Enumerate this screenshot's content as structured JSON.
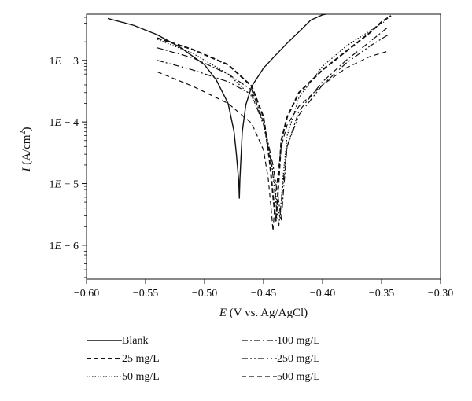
{
  "chart_data": {
    "type": "line",
    "title": "",
    "xlabel": "E (V vs. Ag/AgCl)",
    "ylabel": "I (A/cm²)",
    "xlim": [
      -0.6,
      -0.3
    ],
    "ylim_log10": [
      -6.55,
      -2.25
    ],
    "y_scale": "log",
    "x_ticks": [
      "−0.60",
      "−0.55",
      "−0.50",
      "−0.45",
      "−0.40",
      "−0.35",
      "−0.30"
    ],
    "y_ticks": [
      {
        "value": 0.001,
        "label": "1E − 3"
      },
      {
        "value": 0.0001,
        "label": "1E − 4"
      },
      {
        "value": 1e-05,
        "label": "1E − 5"
      },
      {
        "value": 1e-06,
        "label": "1E − 6"
      }
    ],
    "legend_position": "below",
    "series": [
      {
        "name": "Blank",
        "style": "solid",
        "width": 1.4,
        "x": [
          -0.582,
          -0.56,
          -0.54,
          -0.52,
          -0.5,
          -0.49,
          -0.48,
          -0.475,
          -0.473,
          -0.471,
          -0.4705,
          -0.47,
          -0.468,
          -0.465,
          -0.46,
          -0.45,
          -0.44,
          -0.43,
          -0.42,
          -0.41,
          -0.4,
          -0.39,
          -0.383
        ],
        "y": [
          0.0048,
          0.0037,
          0.0026,
          0.0016,
          0.00085,
          0.00048,
          0.0002,
          7e-05,
          3e-05,
          1.1e-05,
          5.8e-06,
          1.2e-05,
          7e-05,
          0.00019,
          0.00038,
          0.00075,
          0.0012,
          0.0019,
          0.0029,
          0.0045,
          0.0055,
          0.006,
          0.0062
        ]
      },
      {
        "name": "25 mg/L",
        "style": "dash-heavy",
        "width": 2.0,
        "x": [
          -0.54,
          -0.51,
          -0.48,
          -0.46,
          -0.45,
          -0.445,
          -0.441,
          -0.4395,
          -0.438,
          -0.435,
          -0.43,
          -0.42,
          -0.4,
          -0.38,
          -0.36,
          -0.35,
          -0.342
        ],
        "y": [
          0.0023,
          0.0015,
          0.00085,
          0.00038,
          0.00012,
          2.5e-05,
          4.2e-06,
          2.5e-06,
          6e-06,
          5e-05,
          0.00012,
          0.0003,
          0.0007,
          0.0014,
          0.0028,
          0.0042,
          0.0053
        ]
      },
      {
        "name": "50 mg/L",
        "style": "dotted",
        "width": 1.2,
        "x": [
          -0.54,
          -0.51,
          -0.48,
          -0.46,
          -0.45,
          -0.443,
          -0.438,
          -0.436,
          -0.434,
          -0.43,
          -0.42,
          -0.4,
          -0.38,
          -0.36,
          -0.348
        ],
        "y": [
          0.0022,
          0.0013,
          0.0006,
          0.00026,
          0.0001,
          2e-05,
          4e-06,
          2.8e-06,
          1e-05,
          6e-05,
          0.00025,
          0.0008,
          0.0017,
          0.003,
          0.0042
        ]
      },
      {
        "name": "100 mg/L",
        "style": "dashdot",
        "width": 1.2,
        "x": [
          -0.54,
          -0.51,
          -0.48,
          -0.46,
          -0.45,
          -0.442,
          -0.437,
          -0.435,
          -0.433,
          -0.43,
          -0.42,
          -0.4,
          -0.38,
          -0.36,
          -0.345
        ],
        "y": [
          0.0016,
          0.0011,
          0.0006,
          0.00033,
          0.0001,
          2e-05,
          5e-06,
          2.5e-06,
          8e-06,
          4e-05,
          0.00015,
          0.00045,
          0.001,
          0.002,
          0.0034
        ]
      },
      {
        "name": "250 mg/L",
        "style": "dashdotdot",
        "width": 1.2,
        "x": [
          -0.54,
          -0.51,
          -0.48,
          -0.46,
          -0.45,
          -0.443,
          -0.439,
          -0.437,
          -0.434,
          -0.43,
          -0.42,
          -0.4,
          -0.38,
          -0.36,
          -0.343
        ],
        "y": [
          0.001,
          0.0007,
          0.00045,
          0.00028,
          9e-05,
          2e-05,
          4e-06,
          2.1e-06,
          8e-06,
          4e-05,
          0.00013,
          0.0004,
          0.0009,
          0.0017,
          0.0027
        ]
      },
      {
        "name": "500 mg/L",
        "style": "dashed",
        "width": 1.2,
        "x": [
          -0.54,
          -0.51,
          -0.48,
          -0.46,
          -0.45,
          -0.446,
          -0.443,
          -0.442,
          -0.44,
          -0.435,
          -0.43,
          -0.42,
          -0.4,
          -0.38,
          -0.36,
          -0.345
        ],
        "y": [
          0.00065,
          0.00038,
          0.0002,
          9.5e-05,
          3.5e-05,
          1.2e-05,
          3e-06,
          1.7e-06,
          6e-06,
          4e-05,
          9e-05,
          0.00018,
          0.0004,
          0.00075,
          0.00115,
          0.0014
        ]
      }
    ]
  }
}
